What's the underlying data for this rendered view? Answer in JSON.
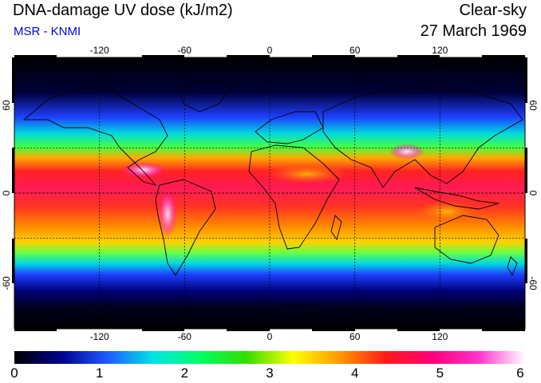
{
  "header": {
    "title": "DNA-damage UV dose (kJ/m2)",
    "subtitle": "MSR - KNMI",
    "condition": "Clear-sky",
    "date": "27 March 1969"
  },
  "map": {
    "lon_ticks": [
      "-120",
      "-60",
      "0",
      "60",
      "120"
    ],
    "lat_ticks": [
      "60",
      "0",
      "-60"
    ],
    "lon_range": [
      -180,
      180
    ],
    "lat_range": [
      -90,
      90
    ],
    "gridlines": "dotted",
    "background": "#000000"
  },
  "colorbar": {
    "ticks": [
      "0",
      "1",
      "2",
      "3",
      "4",
      "5",
      "6"
    ],
    "stops": [
      "#000000",
      "#00008b",
      "#1e5aff",
      "#00e5e5",
      "#00ff66",
      "#33dd00",
      "#ffff00",
      "#ff9900",
      "#ff1a1a",
      "#ff0077",
      "#ff33cc",
      "#ffffff"
    ]
  },
  "colors": {
    "subtitle": "#0000ee"
  }
}
